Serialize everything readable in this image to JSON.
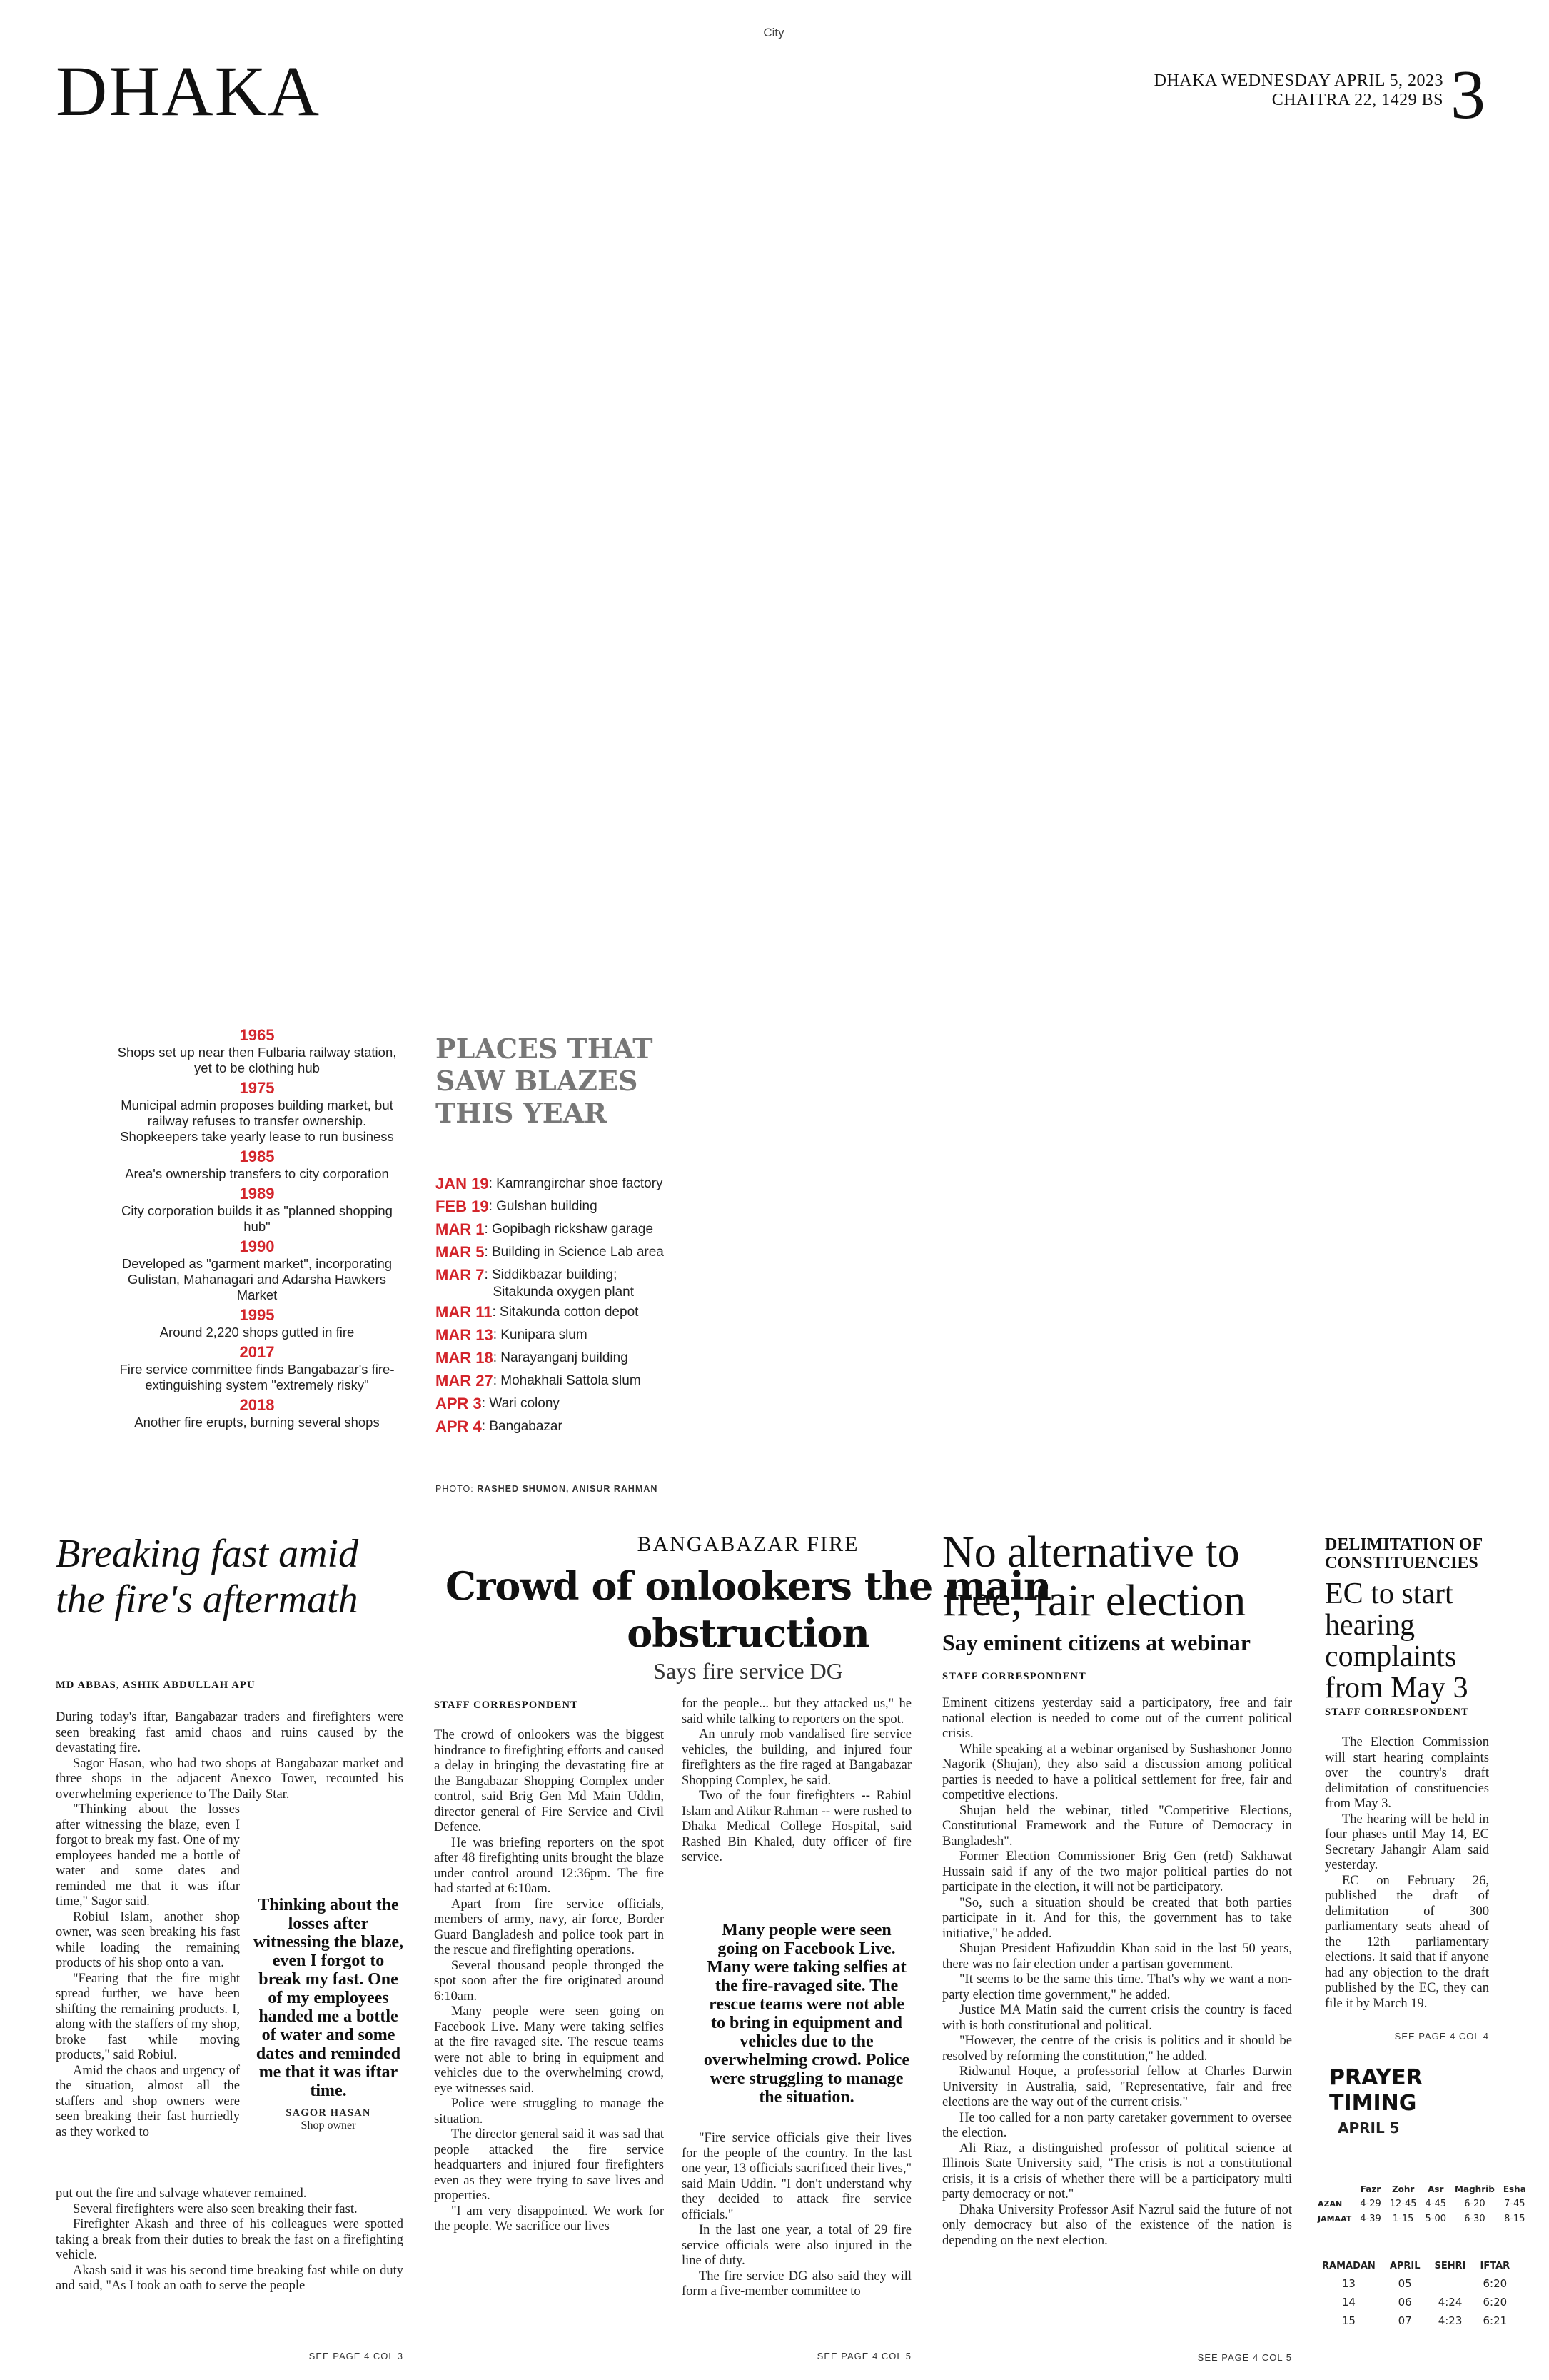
{
  "page": {
    "section": "City",
    "masthead": "DHAKA",
    "date_line1": "DHAKA WEDNESDAY APRIL 5, 2023",
    "date_line2": "CHAITRA 22, 1429 BS",
    "page_number": "3"
  },
  "timeline": [
    {
      "year": "1965",
      "text": "Shops set up near then Fulbaria railway station, yet to be clothing hub"
    },
    {
      "year": "1975",
      "text": "Municipal admin proposes building market, but railway refuses to transfer ownership. Shopkeepers take yearly lease to run business"
    },
    {
      "year": "1985",
      "text": "Area's ownership transfers to city corporation"
    },
    {
      "year": "1989",
      "text": "City corporation builds it as \"planned shopping hub\""
    },
    {
      "year": "1990",
      "text": "Developed as \"garment market\", incorporating Gulistan, Mahanagari and Adarsha Hawkers Market"
    },
    {
      "year": "1995",
      "text": "Around 2,220 shops gutted in fire"
    },
    {
      "year": "2017",
      "text": "Fire service committee finds Bangabazar's fire-extinguishing system \"extremely risky\""
    },
    {
      "year": "2018",
      "text": "Another fire erupts, burning several shops"
    }
  ],
  "places": {
    "title": "PLACES THAT SAW BLAZES THIS YEAR",
    "items": [
      {
        "date": "JAN 19",
        "text": ": Kamrangirchar shoe factory"
      },
      {
        "date": "FEB 19",
        "text": ": Gulshan building"
      },
      {
        "date": "MAR 1",
        "text": ": Gopibagh rickshaw garage"
      },
      {
        "date": "MAR 5",
        "text": ": Building in Science Lab area"
      },
      {
        "date": "MAR 7",
        "text": ": Siddikbazar building;",
        "text2": "Sitakunda oxygen plant"
      },
      {
        "date": "MAR 11",
        "text": ": Sitakunda cotton depot"
      },
      {
        "date": "MAR 13",
        "text": ": Kunipara slum"
      },
      {
        "date": "MAR 18",
        "text": ": Narayanganj building"
      },
      {
        "date": "MAR 27",
        "text": ": Mohakhali Sattola slum"
      },
      {
        "date": "APR 3",
        "text": ": Wari colony"
      },
      {
        "date": "APR 4",
        "text": ": Bangabazar"
      }
    ],
    "photo_label": "PHOTO:",
    "photo_names": "RASHED SHUMON, ANISUR RAHMAN"
  },
  "article1": {
    "headline": "Breaking fast amid the fire's aftermath",
    "byline": "MD ABBAS, ASHIK ABDULLAH APU",
    "intro": [
      "During today's iftar, Bangabazar traders and firefighters were seen breaking fast amid chaos and ruins caused by the devastating fire.",
      "Sagor Hasan, who had two shops at Bangabazar market and three shops in the adjacent Anexco Tower, recounted his overwhelming experience to The Daily Star."
    ],
    "narrow": [
      "\"Thinking about the losses after witnessing the blaze, even I forgot to break my fast. One of my employees handed me a bottle of water and some dates and reminded me that it was iftar time,\" Sagor said.",
      "Robiul Islam, another shop owner, was seen breaking his fast while loading the remaining products of his shop onto a van.",
      "\"Fearing that the fire might spread further, we have been shifting the remaining products. I, along with the staffers of my shop, broke fast while moving products,\" said Robiul.",
      "Amid the chaos and urgency of the situation, almost all the staffers and shop owners were seen breaking their fast hurriedly as they worked to"
    ],
    "outro": [
      "put out the fire and salvage whatever remained.",
      "Several firefighters were also seen breaking their fast.",
      "Firefighter Akash and three of his colleagues were spotted taking a break from their duties to break the fast on a firefighting vehicle.",
      "Akash said it was his second time breaking fast while on duty and said, \"As I took an oath to serve the people"
    ],
    "quote": "Thinking about the losses after witnessing the blaze, even I forgot to break my fast. One of my employees handed me a bottle of water and some dates and reminded me that it was iftar time.",
    "quote_name": "SAGOR HASAN",
    "quote_role": "Shop owner",
    "see_page": "SEE PAGE 4 COL 3"
  },
  "article2": {
    "kicker": "BANGABAZAR FIRE",
    "headline": "Crowd of onlookers the main obstruction",
    "subhead": "Says fire service DG",
    "byline": "STAFF CORRESPONDENT",
    "col1": [
      "The crowd of onlookers was the biggest hindrance to firefighting efforts and caused a delay in bringing the devastating fire at the Bangabazar Shopping Complex under control, said Brig Gen Md Main Uddin, director general of Fire Service and Civil Defence.",
      "He was briefing reporters on the spot after 48 firefighting units brought the blaze under control around 12:36pm. The fire had started at 6:10am.",
      "Apart from fire service officials, members of army, navy, air force, Border Guard Bangladesh and police took part in the rescue and firefighting operations.",
      "Several thousand people thronged the spot soon after the fire originated around 6:10am.",
      "Many people were seen going on Facebook Live. Many were taking selfies at the fire ravaged site. The rescue teams were not able to bring in equipment and vehicles due to the overwhelming crowd, eye witnesses said.",
      "Police were struggling to manage the situation.",
      "The director general said it was sad that people attacked the fire service headquarters and injured four firefighters even as they were trying to save lives and properties.",
      "\"I am very disappointed. We work for the people. We sacrifice our lives"
    ],
    "col2_top": [
      "for the people... but they attacked us,\" he said while talking to reporters on the spot.",
      "An unruly mob vandalised fire service vehicles, the building, and injured four firefighters as the fire raged at Bangabazar Shopping Complex, he said.",
      "Two of the four firefighters -- Rabiul Islam and Atikur Rahman -- were rushed to Dhaka Medical College Hospital, said Rashed Bin Khaled, duty officer of fire service."
    ],
    "quote": "Many people were seen going on Facebook Live. Many were taking selfies at the fire-ravaged site. The rescue teams were not able to bring in equipment and vehicles due to the overwhelming crowd. Police were struggling to manage the situation.",
    "col2_bottom": [
      "\"Fire service officials give their lives for the people of the country. In the last one year, 13 officials sacrificed their lives,\" said Main Uddin. \"I don't understand why they decided to attack fire service officials.\"",
      "In the last one year, a total of 29 fire service officials were also injured in the line of duty.",
      "The fire service DG also said they will form a five-member committee to"
    ],
    "see_page": "SEE PAGE 4 COL 5"
  },
  "article3": {
    "headline": "No alternative to free, fair election",
    "subhead": "Say eminent citizens at webinar",
    "byline": "STAFF CORRESPONDENT",
    "paragraphs": [
      "Eminent citizens yesterday said a participatory, free and fair national election is needed to come out of the current political crisis.",
      "While speaking at a webinar organised by Sushashoner Jonno Nagorik (Shujan), they also said a discussion among political parties is needed to have a political settlement for free, fair and competitive elections.",
      "Shujan held the webinar, titled \"Competitive Elections, Constitutional Framework and the Future of Democracy in Bangladesh\".",
      "Former Election Commissioner Brig Gen (retd) Sakhawat Hussain said if any of the two major political parties do not participate in the election, it will not be participatory.",
      "\"So, such a situation should be created that both parties participate in it. And for this, the government has to take initiative,\" he added.",
      "Shujan President Hafizuddin Khan said in the last 50 years, there was no fair election under a partisan government.",
      "\"It seems to be the same this time. That's why we want a non-party election time government,\" he added.",
      "Justice MA Matin said the current crisis the country is faced with is both constitutional and political.",
      "\"However, the centre of the crisis is politics and it should be resolved by reforming the constitution,\" he added.",
      "Ridwanul Hoque, a professorial fellow at Charles Darwin University in Australia, said, \"Representative, fair and free elections are the way out of the current crisis.\"",
      "He too called for a non party caretaker government to oversee the election.",
      "Ali Riaz, a distinguished professor of political science at Illinois State University said, \"The crisis is not a constitutional crisis, it is a crisis of whether there will be a participatory multi party democracy or not.\"",
      "Dhaka University Professor Asif Nazrul said the future of not only democracy but also of the existence of the nation is depending on the next election."
    ],
    "see_page": "SEE PAGE 4 COL 5"
  },
  "article4": {
    "kicker": "DELIMITATION OF CONSTITUENCIES",
    "headline": "EC to start hearing complaints from May 3",
    "byline": "STAFF CORRESPONDENT",
    "paragraphs": [
      "The Election Commission will start hearing complaints over the country's draft delimitation of constituencies from May 3.",
      "The hearing will be held in four phases until May 14, EC Secretary Jahangir Alam said yesterday.",
      "EC on February 26, published the draft of delimitation of 300 parliamentary seats ahead of the 12th parliamentary elections. It said that if anyone had any objection to the draft published by the EC, they can file it by March 19."
    ],
    "see_page": "SEE PAGE 4 COL 4"
  },
  "prayer": {
    "title": "PRAYER TIMING",
    "date": "APRIL 5",
    "headers": [
      "",
      "Fazr",
      "Zohr",
      "Asr",
      "Maghrib",
      "Esha"
    ],
    "rows": [
      {
        "label": "AZAN",
        "values": [
          "4-29",
          "12-45",
          "4-45",
          "6-20",
          "7-45"
        ]
      },
      {
        "label": "JAMAAT",
        "values": [
          "4-39",
          "1-15",
          "5-00",
          "6-30",
          "8-15"
        ]
      }
    ],
    "ramadan_headers": [
      "RAMADAN",
      "APRIL",
      "SEHRI",
      "IFTAR"
    ],
    "ramadan_rows": [
      [
        "13",
        "05",
        "",
        "6:20"
      ],
      [
        "14",
        "06",
        "4:24",
        "6:20"
      ],
      [
        "15",
        "07",
        "4:23",
        "6:21"
      ]
    ]
  }
}
